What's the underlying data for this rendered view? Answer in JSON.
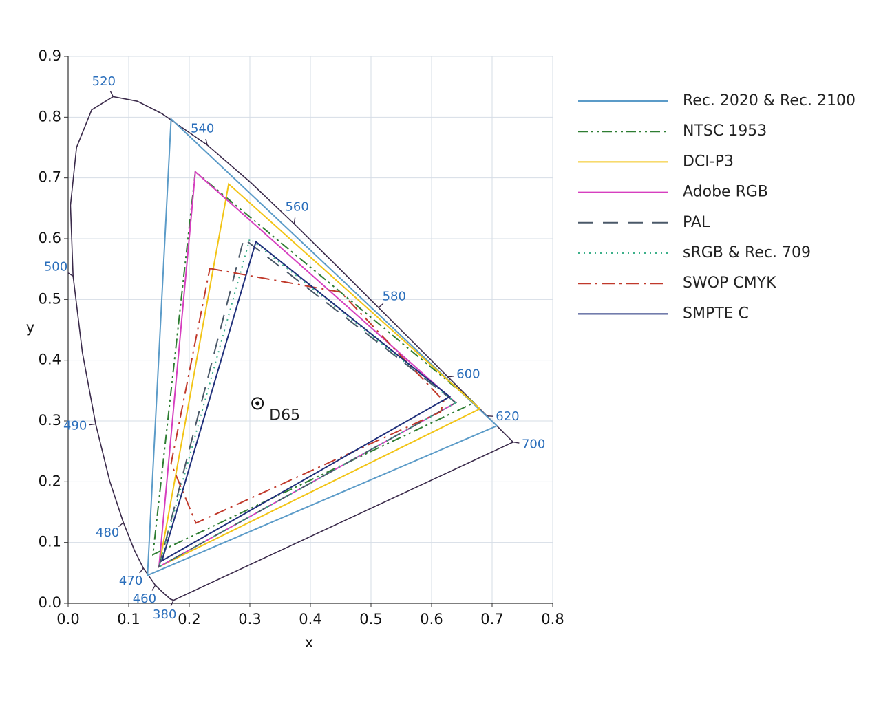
{
  "chart_data": {
    "type": "line",
    "xlabel": "x",
    "ylabel": "y",
    "xlim": [
      0,
      0.8
    ],
    "ylim": [
      0,
      0.9
    ],
    "xticks": [
      {
        "value": 0,
        "label": "0.0"
      },
      0.1,
      0.2,
      0.3,
      0.4,
      0.5,
      0.6,
      0.7,
      0.8
    ],
    "yticks": [
      {
        "value": 0,
        "label": "0.0"
      },
      0.1,
      0.2,
      0.3,
      0.4,
      0.5,
      0.6,
      0.7,
      0.8,
      0.9
    ],
    "grid": true,
    "legend": "right",
    "locus": {
      "color": "#3a2a4a",
      "x": [
        0.1741,
        0.1689,
        0.1566,
        0.144,
        0.1241,
        0.1096,
        0.0913,
        0.0687,
        0.0454,
        0.0235,
        0.0082,
        0.0039,
        0.0139,
        0.0389,
        0.0743,
        0.1142,
        0.1547,
        0.2296,
        0.3016,
        0.3731,
        0.4441,
        0.5125,
        0.5752,
        0.627,
        0.6658,
        0.6915,
        0.719,
        0.7347
      ],
      "y": [
        0.005,
        0.0069,
        0.0177,
        0.0297,
        0.0578,
        0.0868,
        0.1327,
        0.2007,
        0.295,
        0.4127,
        0.5384,
        0.6548,
        0.7502,
        0.812,
        0.8338,
        0.8262,
        0.8059,
        0.7543,
        0.6923,
        0.6245,
        0.5547,
        0.4866,
        0.4242,
        0.3725,
        0.334,
        0.3083,
        0.2809,
        0.2653
      ],
      "wavelengths": [
        380,
        null,
        null,
        460,
        470,
        null,
        480,
        null,
        490,
        null,
        500,
        null,
        null,
        null,
        520,
        null,
        null,
        540,
        null,
        560,
        null,
        580,
        null,
        600,
        null,
        620,
        null,
        700
      ]
    },
    "d65": {
      "label": "D65",
      "x": 0.3127,
      "y": 0.329
    },
    "series": [
      {
        "name": "Rec. 2020 & Rec. 2100",
        "color": "#5b9bc8",
        "dash": "solid",
        "x": [
          0.708,
          0.17,
          0.131
        ],
        "y": [
          0.292,
          0.797,
          0.046
        ]
      },
      {
        "name": "NTSC 1953",
        "color": "#2e7d32",
        "dash": "dashdotdot",
        "x": [
          0.67,
          0.21,
          0.14
        ],
        "y": [
          0.33,
          0.71,
          0.08
        ]
      },
      {
        "name": "DCI-P3",
        "color": "#f2c416",
        "dash": "solid",
        "x": [
          0.68,
          0.265,
          0.15
        ],
        "y": [
          0.32,
          0.69,
          0.06
        ]
      },
      {
        "name": "Adobe RGB",
        "color": "#d63fbf",
        "dash": "solid",
        "x": [
          0.64,
          0.21,
          0.15
        ],
        "y": [
          0.33,
          0.71,
          0.06
        ]
      },
      {
        "name": "PAL",
        "color": "#4a5868",
        "dash": "dashed",
        "x": [
          0.64,
          0.29,
          0.15
        ],
        "y": [
          0.33,
          0.6,
          0.06
        ]
      },
      {
        "name": "sRGB & Rec. 709",
        "color": "#3cb08a",
        "dash": "dotted",
        "x": [
          0.64,
          0.3,
          0.15
        ],
        "y": [
          0.33,
          0.6,
          0.06
        ]
      },
      {
        "name": "SWOP CMYK",
        "color": "#c0392b",
        "dash": "dashdot",
        "x": [
          0.234,
          0.45,
          0.62,
          0.615,
          0.211,
          0.17
        ],
        "y": [
          0.551,
          0.512,
          0.333,
          0.315,
          0.132,
          0.23
        ]
      },
      {
        "name": "SMPTE C",
        "color": "#1f2f7a",
        "dash": "solid",
        "x": [
          0.63,
          0.31,
          0.155
        ],
        "y": [
          0.34,
          0.595,
          0.07
        ]
      }
    ]
  }
}
